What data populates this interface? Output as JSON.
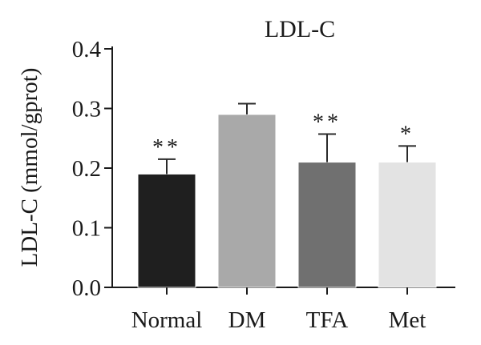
{
  "chart_data": {
    "type": "bar",
    "title": "LDL-C",
    "ylabel": "LDL-C (mmol/gprot)",
    "xlabel": "",
    "categories": [
      "Normal",
      "DM",
      "TFA",
      "Met"
    ],
    "values": [
      0.19,
      0.29,
      0.21,
      0.21
    ],
    "errors": [
      0.025,
      0.018,
      0.047,
      0.027
    ],
    "significance": [
      "**",
      "",
      "**",
      "*"
    ],
    "colors": [
      "#1f1f1f",
      "#a9a9a9",
      "#707070",
      "#e3e3e3"
    ],
    "ylim": [
      0,
      0.4
    ],
    "yticks": [
      0.0,
      0.1,
      0.2,
      0.3,
      0.4
    ],
    "ytick_labels": [
      "0.0",
      "0.1",
      "0.2",
      "0.3",
      "0.4"
    ],
    "grid": false,
    "legend": "none"
  }
}
